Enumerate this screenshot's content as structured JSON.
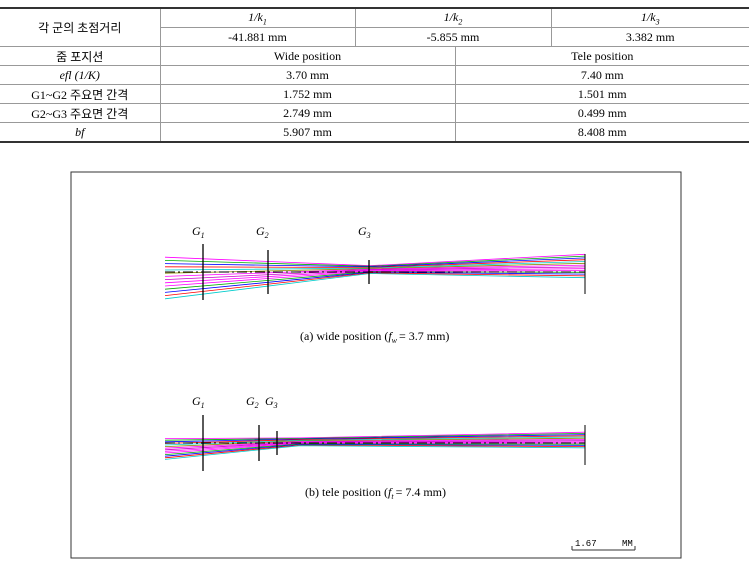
{
  "table": {
    "focal_label": "각 군의 초점거리",
    "groups": [
      {
        "text": "1/k",
        "sub": "1"
      },
      {
        "text": "1/k",
        "sub": "2"
      },
      {
        "text": "1/k",
        "sub": "3"
      }
    ],
    "focal_values": [
      "-41.881 mm",
      "-5.855 mm",
      "3.382 mm"
    ],
    "rows": [
      [
        "줌 포지션",
        "Wide position",
        "Tele position"
      ],
      [
        "efl (1/K)",
        "3.70 mm",
        "7.40 mm"
      ],
      [
        "G1~G2 주요면 간격",
        "1.752 mm",
        "1.501 mm"
      ],
      [
        "G2~G3 주요면 간격",
        "2.749 mm",
        "0.499 mm"
      ],
      [
        "bf",
        "5.907 mm",
        "8.408 mm"
      ]
    ]
  },
  "figure": {
    "panels": [
      {
        "lenses": [
          {
            "text": "G",
            "sub": "1"
          },
          {
            "text": "G",
            "sub": "2"
          },
          {
            "text": "G",
            "sub": "3"
          }
        ],
        "caption": {
          "prefix": "(a) wide position (",
          "var": "f",
          "sub": "w",
          "suffix": "= 3.7 mm)"
        }
      },
      {
        "lenses": [
          {
            "text": "G",
            "sub": "1"
          },
          {
            "text": "G",
            "sub": "2"
          },
          {
            "text": "G",
            "sub": "3"
          }
        ],
        "caption": {
          "prefix": "(b) tele position (",
          "var": "f",
          "sub": "t",
          "suffix": "= 7.4 mm)"
        }
      }
    ],
    "scale": {
      "value": "1.67",
      "unit": "MM"
    }
  }
}
